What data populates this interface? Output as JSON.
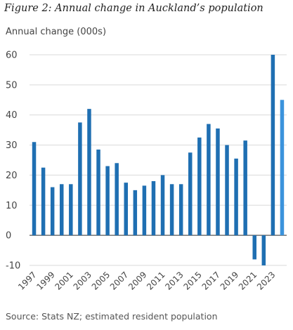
{
  "chart_data": {
    "type": "bar",
    "title": "Figure 2: Annual change in Auckland’s population",
    "ylabel": "Annual change (000s)",
    "source": "Source: Stats NZ; estimated resident population",
    "categories": [
      "1997",
      "1998",
      "1999",
      "2000",
      "2001",
      "2002",
      "2003",
      "2004",
      "2005",
      "2006",
      "2007",
      "2008",
      "2009",
      "2010",
      "2011",
      "2012",
      "2013",
      "2014",
      "2015",
      "2016",
      "2017",
      "2018",
      "2019",
      "2020",
      "2021",
      "2022",
      "2023",
      "2024"
    ],
    "values": [
      31,
      22.5,
      16,
      17,
      17,
      37.5,
      42,
      28.5,
      23,
      24,
      17.5,
      15,
      16.5,
      18,
      20,
      17,
      17,
      27.5,
      32.5,
      37,
      35.5,
      30,
      25.5,
      31.5,
      -8,
      -10,
      60,
      45
    ],
    "x_tick_labels": [
      "1997",
      "1999",
      "2001",
      "2003",
      "2005",
      "2007",
      "2009",
      "2011",
      "2013",
      "2015",
      "2017",
      "2019",
      "2021",
      "2023"
    ],
    "y_ticks": [
      -10,
      0,
      10,
      20,
      30,
      40,
      50,
      60
    ],
    "ylim": [
      -10,
      60
    ],
    "grid": true,
    "colors": {
      "bar": "#1f6fb2",
      "bar_highlight": "#3b93dc",
      "grid": "#d9d9d9",
      "zero_line": "#555555"
    },
    "highlight_index": 27
  }
}
